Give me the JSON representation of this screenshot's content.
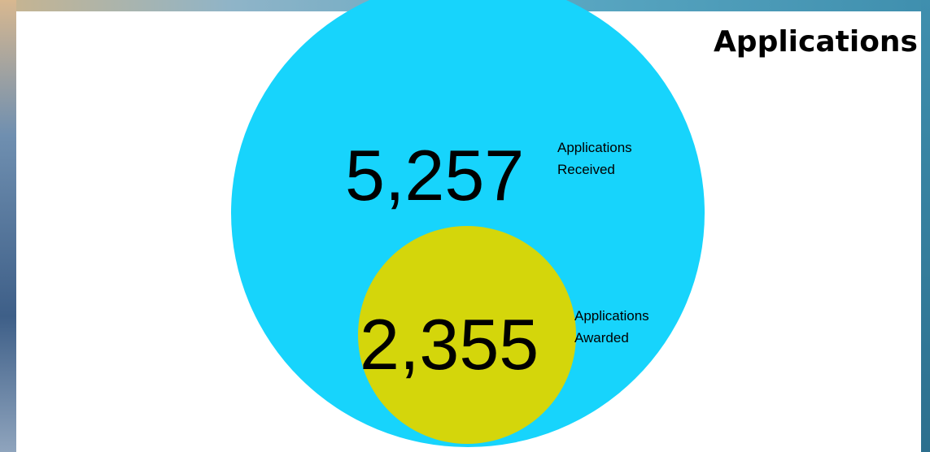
{
  "title": "Applications",
  "stats": [
    {
      "value": "5,257",
      "label_lines": [
        "Applications",
        "Received"
      ]
    },
    {
      "value": "2,355",
      "label_lines": [
        "Applications",
        "Awarded"
      ]
    }
  ]
}
